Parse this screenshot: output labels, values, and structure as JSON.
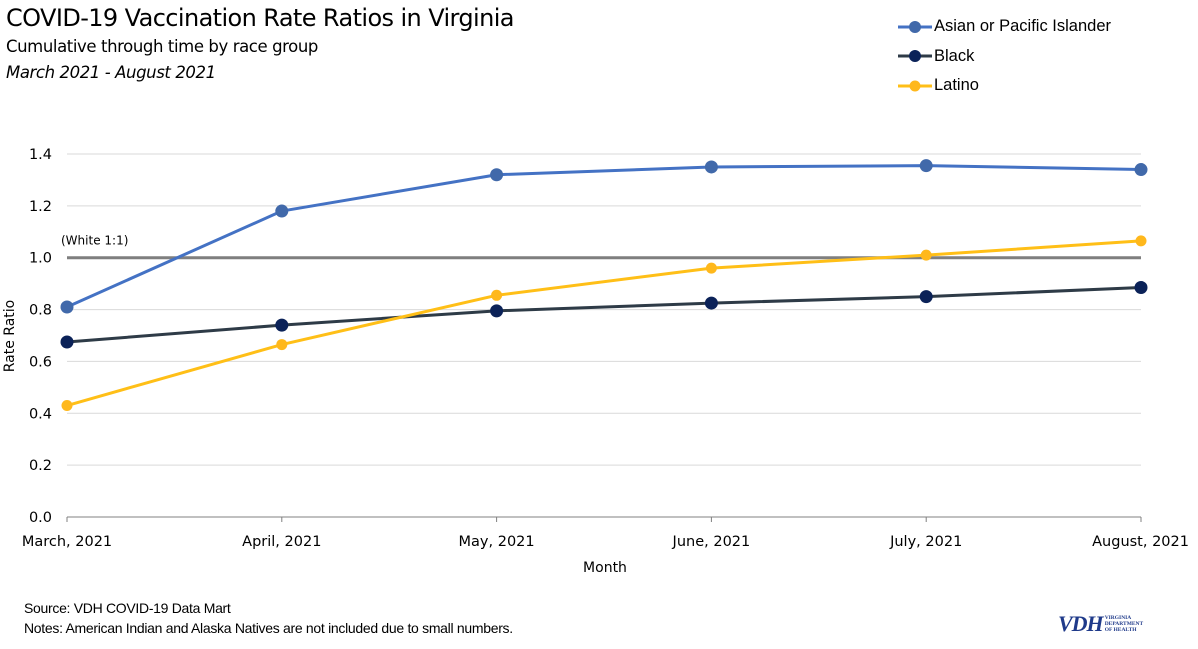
{
  "chart_data": {
    "type": "line",
    "title": "COVID-19 Vaccination Rate Ratios in Virginia",
    "subtitle": "Cumulative through time by race group",
    "period": "March 2021 - August 2021",
    "xlabel": "Month",
    "ylabel": "Rate Ratio",
    "categories": [
      "March, 2021",
      "April, 2021",
      "May, 2021",
      "June, 2021",
      "July, 2021",
      "August, 2021"
    ],
    "ylim": [
      0,
      1.4
    ],
    "yticks": [
      "0.0",
      "0.2",
      "0.4",
      "0.6",
      "0.8",
      "1.0",
      "1.2",
      "1.4"
    ],
    "ytick_values": [
      0,
      0.2,
      0.4,
      0.6,
      0.8,
      1.0,
      1.2,
      1.4
    ],
    "grid": true,
    "legend_position": "top-right",
    "reference_line": {
      "value": 1.0,
      "label": "(White 1:1)",
      "color": "#7f7f7f"
    },
    "series": [
      {
        "name": "Asian or Pacific Islander",
        "color": "#4472c4",
        "marker_color": "#4169aa",
        "values": [
          0.81,
          1.18,
          1.32,
          1.35,
          1.355,
          1.34
        ]
      },
      {
        "name": "Black",
        "color": "#2e3b47",
        "marker_color": "#0b2258",
        "values": [
          0.675,
          0.74,
          0.795,
          0.825,
          0.85,
          0.885
        ]
      },
      {
        "name": "Latino",
        "color": "#ffbf17",
        "marker_color": "#ffb81c",
        "values": [
          0.43,
          0.665,
          0.855,
          0.96,
          1.01,
          1.065
        ]
      }
    ]
  },
  "footer": {
    "source": "Source: VDH COVID-19 Data Mart",
    "notes": "Notes: American Indian and Alaska Natives are not included due to small numbers."
  },
  "logo": {
    "mark": "VDH",
    "line1": "VIRGINIA",
    "line2": "DEPARTMENT",
    "line3": "OF HEALTH"
  }
}
